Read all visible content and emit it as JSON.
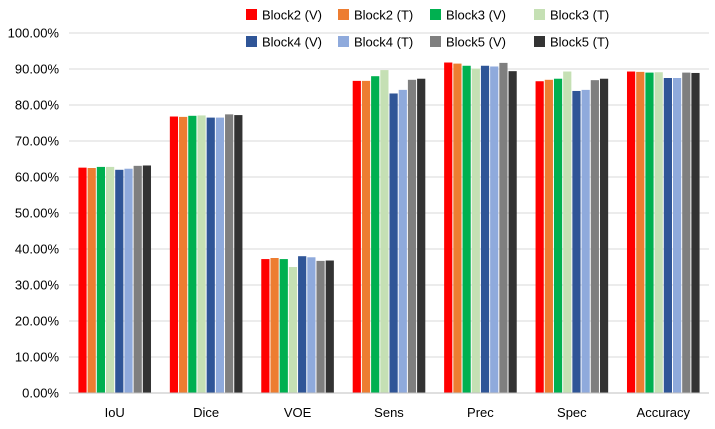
{
  "chart_data": {
    "type": "bar",
    "title": "",
    "xlabel": "",
    "ylabel": "",
    "ylim": [
      0,
      100
    ],
    "yticks": [
      "0.00%",
      "10.00%",
      "20.00%",
      "30.00%",
      "40.00%",
      "50.00%",
      "60.00%",
      "70.00%",
      "80.00%",
      "90.00%",
      "100.00%"
    ],
    "grid": true,
    "legend_position": "top",
    "categories": [
      "IoU",
      "Dice",
      "VOE",
      "Sens",
      "Prec",
      "Spec",
      "Accuracy"
    ],
    "series": [
      {
        "name": "Block2 (V)",
        "color": "#ff0000",
        "values": [
          62.6,
          76.8,
          37.2,
          86.7,
          91.8,
          86.6,
          89.3
        ]
      },
      {
        "name": "Block2 (T)",
        "color": "#ed7d31",
        "values": [
          62.5,
          76.7,
          37.5,
          86.7,
          91.5,
          87.0,
          89.2
        ]
      },
      {
        "name": "Block3 (V)",
        "color": "#00b050",
        "values": [
          62.8,
          77.0,
          37.2,
          88.0,
          90.9,
          87.3,
          89.0
        ]
      },
      {
        "name": "Block3 (T)",
        "color": "#c5e0b4",
        "values": [
          62.8,
          77.1,
          35.0,
          89.7,
          90.1,
          89.3,
          89.1
        ]
      },
      {
        "name": "Block4 (V)",
        "color": "#2f5597",
        "values": [
          62.0,
          76.5,
          38.0,
          83.2,
          90.9,
          83.9,
          87.5
        ]
      },
      {
        "name": "Block4 (T)",
        "color": "#8faadc",
        "values": [
          62.3,
          76.5,
          37.7,
          84.2,
          90.7,
          84.2,
          87.5
        ]
      },
      {
        "name": "Block5 (V)",
        "color": "#7f7f7f",
        "values": [
          63.1,
          77.4,
          36.7,
          87.0,
          91.7,
          86.9,
          89.0
        ]
      },
      {
        "name": "Block5 (T)",
        "color": "#333333",
        "values": [
          63.2,
          77.2,
          36.8,
          87.3,
          89.4,
          87.3,
          88.9
        ]
      }
    ]
  }
}
